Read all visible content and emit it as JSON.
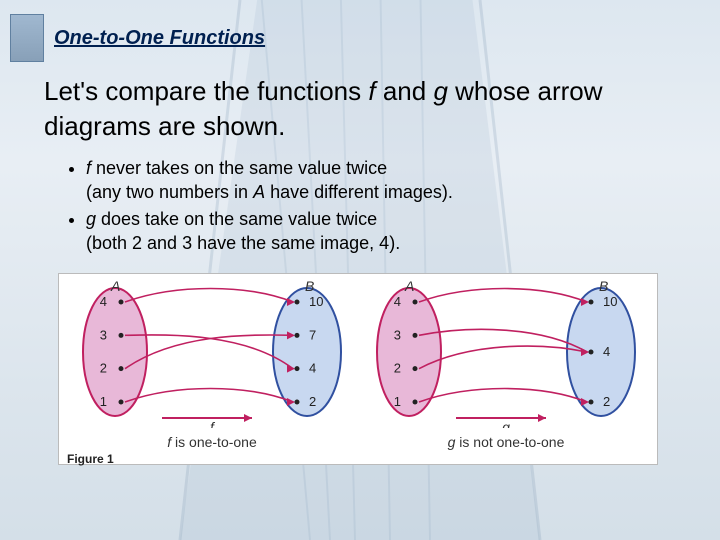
{
  "header": {
    "title": "One-to-One Functions"
  },
  "main": {
    "text_prefix": "Let's compare the functions ",
    "fn_f": "f",
    "text_mid": " and ",
    "fn_g": "g",
    "text_suffix": " whose arrow diagrams are shown."
  },
  "bullets": [
    {
      "fn": "f",
      "line1": " never takes on the same value twice",
      "line2": "(any two numbers in ",
      "set": "A",
      "line2b": " have different images)."
    },
    {
      "fn": "g",
      "line1": " does take on the same value twice",
      "line2": "(both 2 and 3 have the same image, 4)."
    }
  ],
  "figure": {
    "label": "Figure 1",
    "diagrams": [
      {
        "setA_label": "A",
        "setB_label": "B",
        "A_values": [
          "4",
          "3",
          "2",
          "1"
        ],
        "B_values": [
          "10",
          "7",
          "4",
          "2"
        ],
        "fn_name": "f",
        "caption_fn": "f",
        "caption_text": " is one-to-one",
        "colors": {
          "A_fill": "#e8b8d8",
          "A_stroke": "#c02060",
          "B_fill": "#c8d8f0",
          "B_stroke": "#3050a0",
          "arrow": "#c02060"
        },
        "arrows": [
          {
            "from": 0,
            "to": 0
          },
          {
            "from": 1,
            "to": 2
          },
          {
            "from": 2,
            "to": 1
          },
          {
            "from": 3,
            "to": 3
          }
        ]
      },
      {
        "setA_label": "A",
        "setB_label": "B",
        "A_values": [
          "4",
          "3",
          "2",
          "1"
        ],
        "B_values": [
          "10",
          "4",
          "2"
        ],
        "fn_name": "g",
        "caption_fn": "g",
        "caption_text": " is not one-to-one",
        "colors": {
          "A_fill": "#e8b8d8",
          "A_stroke": "#c02060",
          "B_fill": "#c8d8f0",
          "B_stroke": "#3050a0",
          "arrow": "#c02060"
        },
        "arrows": [
          {
            "from": 0,
            "to": 0
          },
          {
            "from": 1,
            "to": 1
          },
          {
            "from": 2,
            "to": 1
          },
          {
            "from": 3,
            "to": 2
          }
        ]
      }
    ]
  }
}
